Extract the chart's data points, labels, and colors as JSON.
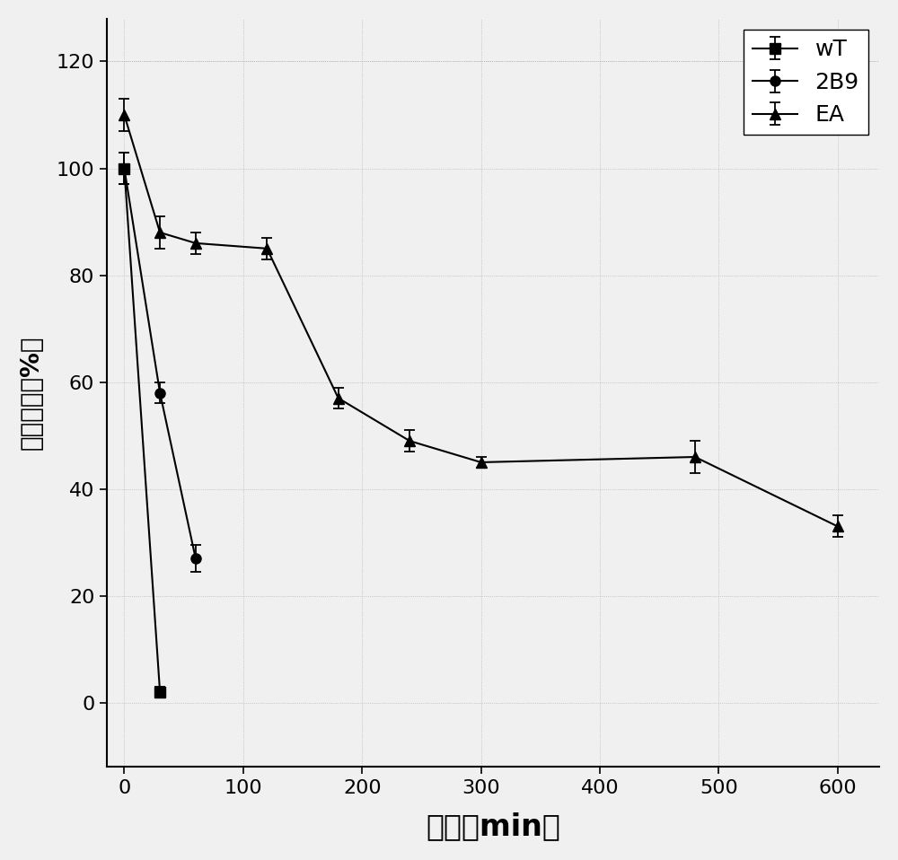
{
  "title": "",
  "xlabel": "时间（min）",
  "ylabel": "残余酶活（%）",
  "xlim": [
    -15,
    635
  ],
  "ylim": [
    -12,
    128
  ],
  "xticks": [
    0,
    100,
    200,
    300,
    400,
    500,
    600
  ],
  "yticks": [
    0,
    20,
    40,
    60,
    80,
    100,
    120
  ],
  "background_color": "#f5f5f5",
  "series": {
    "WT": {
      "x": [
        0,
        30
      ],
      "y": [
        100,
        2
      ],
      "yerr": [
        3,
        1
      ],
      "color": "#000000",
      "marker": "s",
      "label": "wT",
      "markersize": 8,
      "linewidth": 1.5
    },
    "2B9": {
      "x": [
        0,
        30,
        60
      ],
      "y": [
        100,
        58,
        27
      ],
      "yerr": [
        3,
        2,
        2.5
      ],
      "color": "#000000",
      "marker": "o",
      "label": "2B9",
      "markersize": 8,
      "linewidth": 1.5
    },
    "EA": {
      "x": [
        0,
        30,
        60,
        120,
        180,
        240,
        300,
        480,
        600
      ],
      "y": [
        110,
        88,
        86,
        85,
        57,
        49,
        45,
        46,
        33
      ],
      "yerr": [
        3,
        3,
        2,
        2,
        2,
        2,
        1,
        3,
        2
      ],
      "color": "#000000",
      "marker": "^",
      "label": "EA",
      "markersize": 8,
      "linewidth": 1.5
    }
  },
  "legend_fontsize": 18,
  "tick_fontsize": 16,
  "xlabel_fontsize": 24,
  "ylabel_fontsize": 20
}
